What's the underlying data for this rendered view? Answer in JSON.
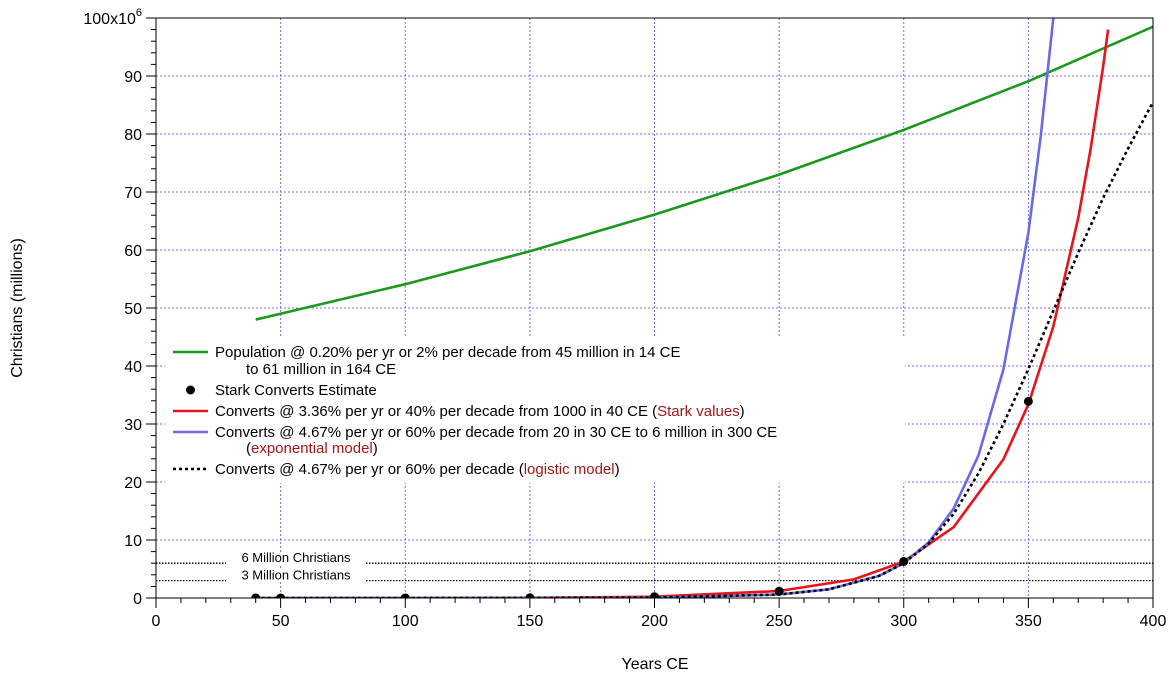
{
  "chart_data": {
    "type": "line",
    "xlabel": "Years CE",
    "ylabel": "Christians (millions)",
    "xlim": [
      0,
      400
    ],
    "ylim": [
      0,
      100
    ],
    "x_ticks": [
      0,
      50,
      100,
      150,
      200,
      250,
      300,
      350,
      400
    ],
    "y_ticks": [
      0,
      10,
      20,
      30,
      40,
      50,
      60,
      70,
      80,
      90
    ],
    "y_top_label": {
      "base": "100x10",
      "exponent": "6"
    },
    "grid": true,
    "reference_lines": [
      {
        "label": "6 Million Christians",
        "y": 6
      },
      {
        "label": "3 Million Christians",
        "y": 3
      }
    ],
    "series": [
      {
        "name": "Population @ 0.20% per yr or 2% per decade from 45 million in 14 CE",
        "name_line2": "to 61 million in 164 CE",
        "color": "#1a9a1a",
        "style": "solid",
        "x": [
          40,
          100,
          150,
          200,
          250,
          300,
          350,
          400
        ],
        "y": [
          48.0,
          54.1,
          59.8,
          66.1,
          73.0,
          80.7,
          89.1,
          98.5
        ]
      },
      {
        "name": "Stark Converts Estimate",
        "style": "points",
        "color": "#000000",
        "x": [
          40,
          50,
          100,
          150,
          200,
          250,
          300,
          350
        ],
        "y": [
          0.001,
          0.0015,
          0.0075,
          0.04,
          0.22,
          1.17,
          6.3,
          33.9
        ]
      },
      {
        "name": "Converts @ 3.36% per yr or 40% per decade from 1000 in 40 CE",
        "name_note": "Stark values",
        "color": "#e8141a",
        "style": "solid",
        "x": [
          40,
          100,
          150,
          200,
          250,
          280,
          300,
          320,
          340,
          350,
          360,
          370,
          375,
          380,
          382
        ],
        "y": [
          0.001,
          0.0075,
          0.04,
          0.22,
          1.2,
          3.2,
          6.3,
          12.2,
          23.9,
          33.4,
          46.8,
          65.5,
          77.5,
          91.7,
          98.0
        ]
      },
      {
        "name": "Converts @ 4.67% per yr or 60% per decade from 20 in 30 CE to 6 million in 300 CE",
        "name_note": "exponential model",
        "color": "#6a6ae6",
        "style": "solid",
        "x": [
          40,
          100,
          150,
          200,
          250,
          270,
          290,
          300,
          310,
          320,
          330,
          340,
          350,
          355,
          360
        ],
        "y": [
          5e-05,
          0.00053,
          0.0054,
          0.055,
          0.6,
          1.5,
          3.8,
          6.0,
          9.6,
          15.4,
          24.6,
          39.4,
          63.0,
          79.7,
          100.0
        ]
      },
      {
        "name": "Converts @ 4.67% per yr or 60% per decade",
        "name_note": "logistic model",
        "color": "#000000",
        "style": "dotted",
        "x": [
          40,
          100,
          150,
          200,
          250,
          270,
          290,
          300,
          310,
          320,
          330,
          340,
          350,
          360,
          370,
          380,
          390,
          400
        ],
        "y": [
          0.0,
          0.0,
          0.01,
          0.06,
          0.6,
          1.5,
          3.8,
          6.0,
          9.4,
          14.5,
          21.5,
          30.0,
          39.5,
          49.5,
          59.5,
          69.0,
          77.5,
          85.5
        ]
      }
    ],
    "legend_position": "center-left"
  }
}
